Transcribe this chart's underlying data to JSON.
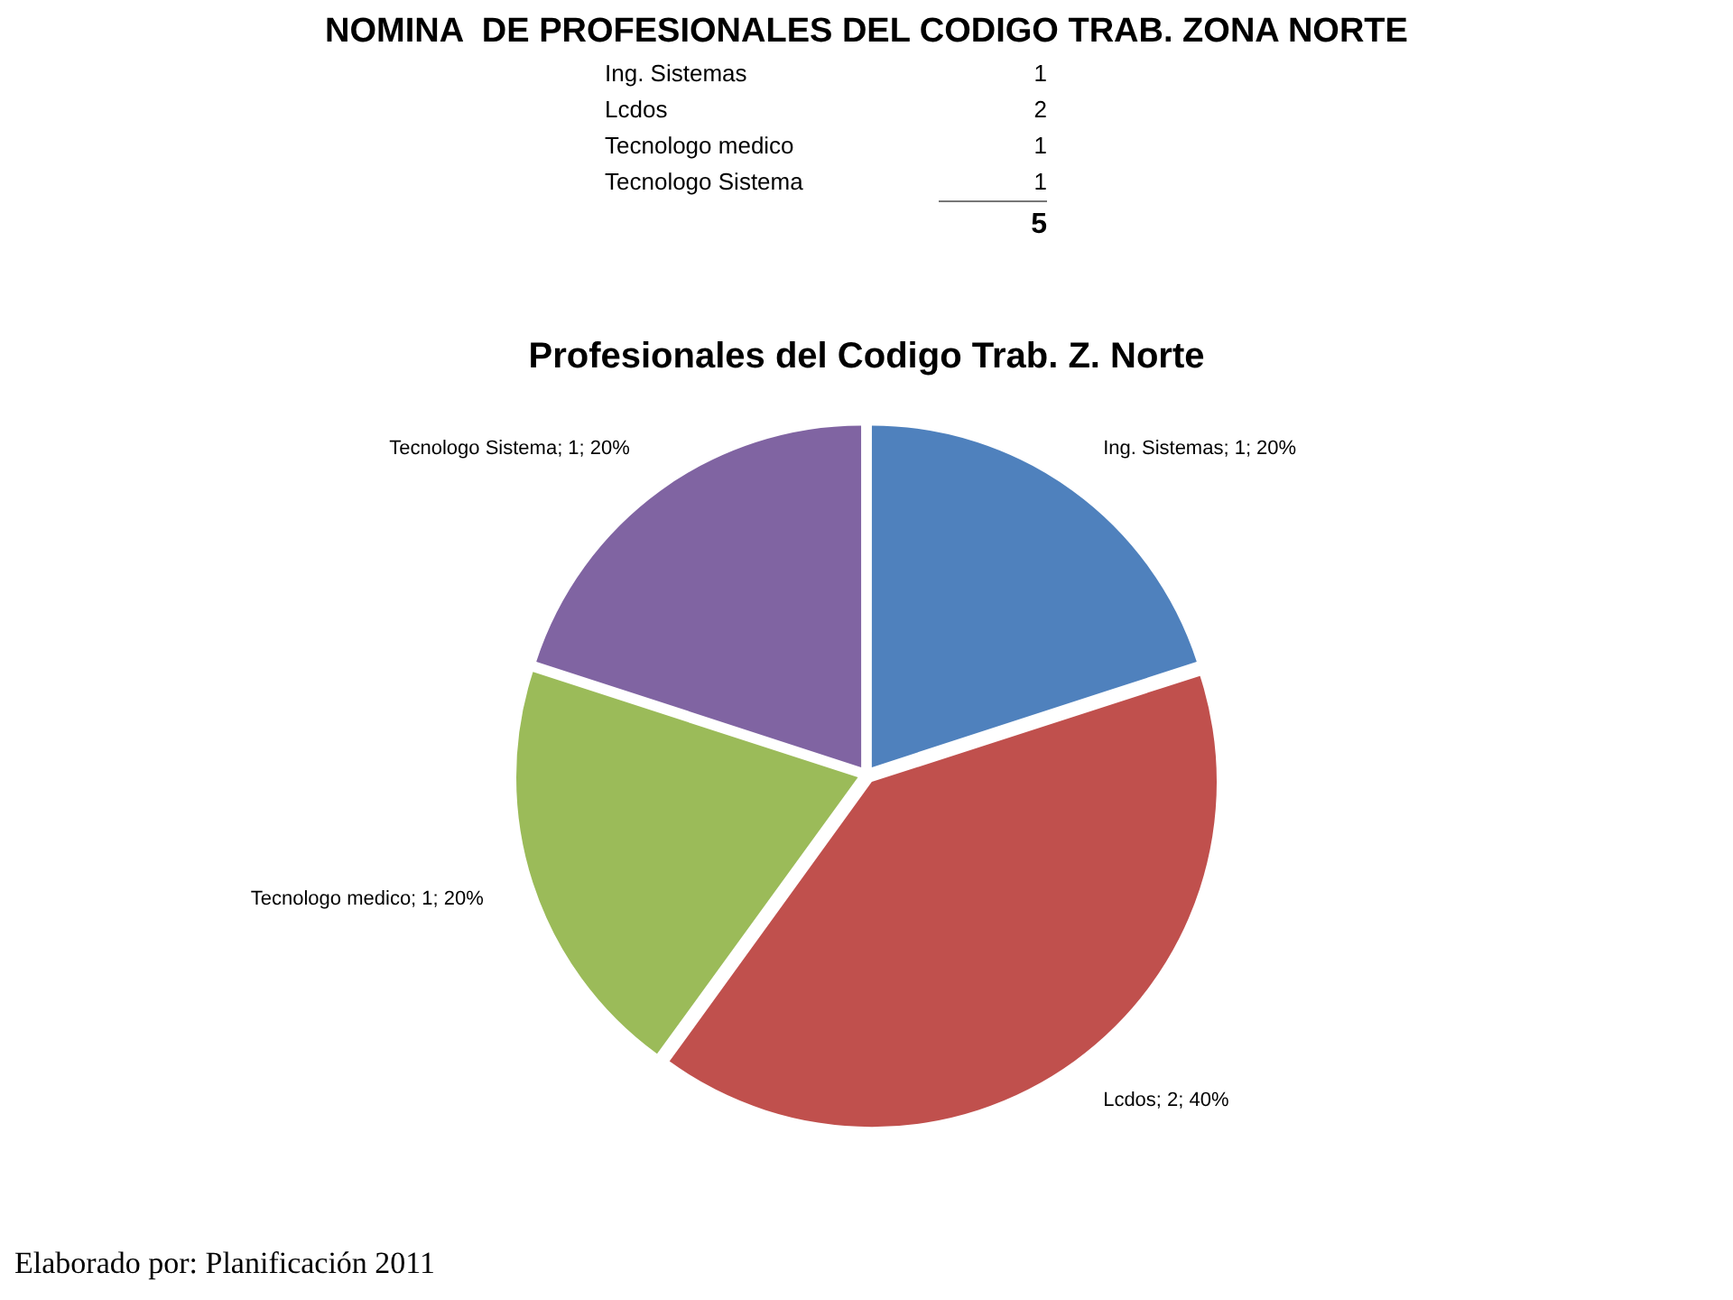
{
  "chart_data": [
    {
      "type": "other",
      "title": "NOMINA  DE PROFESIONALES DEL CODIGO TRAB. ZONA NORTE",
      "categories": [
        "Ing. Sistemas",
        "Lcdos",
        "Tecnologo medico",
        "Tecnologo Sistema"
      ],
      "values": [
        1,
        2,
        1,
        1
      ],
      "data_labels": true,
      "totals": [
        "5"
      ]
    },
    {
      "type": "pie",
      "title": "Profesionales del Codigo Trab. Z. Norte",
      "categories": [
        "Ing. Sistemas",
        "Lcdos",
        "Tecnologo medico",
        "Tecnologo Sistema"
      ],
      "values": [
        1,
        2,
        1,
        1
      ],
      "colors": [
        "#4f81bd",
        "#c0504d",
        "#9bbb59",
        "#8064a2"
      ],
      "value_labels": [
        "; 1; 20%",
        "; 2; 40%",
        "; 1; 20%",
        "; 1; 20%"
      ],
      "annotations": [
        "Elaborado por: Planificación 2011"
      ],
      "legend": false
    }
  ]
}
